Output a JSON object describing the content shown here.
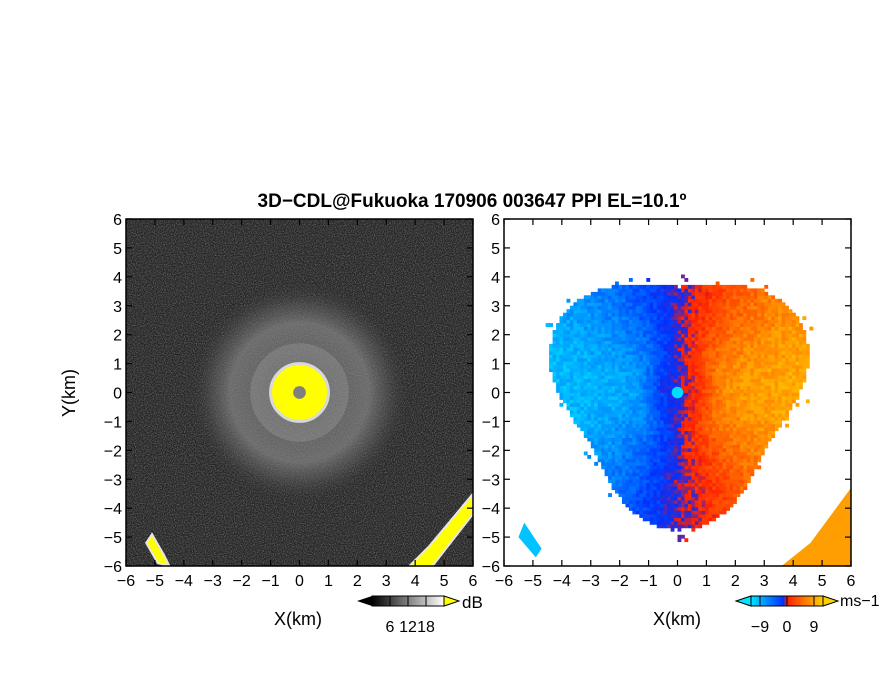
{
  "title": "3D−CDL@Fukuoka 170906 003647 PPI EL=10.1º",
  "chart_data": [
    {
      "type": "heatmap",
      "panel": "reflectivity",
      "xlabel": "X(km)",
      "ylabel": "Y(km)",
      "xlim": [
        -6,
        6
      ],
      "ylim": [
        -6,
        6
      ],
      "xticks": [
        "−6",
        "−5",
        "−4",
        "−3",
        "−2",
        "−1",
        "0",
        "1",
        "2",
        "3",
        "4",
        "5",
        "6"
      ],
      "yticks": [
        "6",
        "5",
        "4",
        "3",
        "2",
        "1",
        "0",
        "−1",
        "−2",
        "−3",
        "−4",
        "−5",
        "−6"
      ],
      "colorbar": {
        "unit": "dB",
        "ticks": [
          "6",
          "12",
          "18"
        ],
        "tick_values": [
          6,
          12,
          18
        ],
        "range": [
          0,
          24
        ],
        "colors": [
          "#000000",
          "#ffffff"
        ],
        "over_color": "#ffff00"
      },
      "features": {
        "background_level_db": 4,
        "ring_level_db": 11,
        "ring_center_km": [
          0,
          0
        ],
        "ring_radius_km": 3.1,
        "saturated_core_radius_km": 1.0,
        "saturated_color": "#ffff00",
        "center_value_color": "#7f7f7f"
      }
    },
    {
      "type": "heatmap",
      "panel": "doppler_velocity",
      "xlabel": "X(km)",
      "xlim": [
        -6,
        6
      ],
      "ylim": [
        -6,
        6
      ],
      "xticks": [
        "−6",
        "−5",
        "−4",
        "−3",
        "−2",
        "−1",
        "0",
        "1",
        "2",
        "3",
        "4",
        "5",
        "6"
      ],
      "yticks": [
        "6",
        "5",
        "4",
        "3",
        "2",
        "1",
        "0",
        "−1",
        "−2",
        "−3",
        "−4",
        "−5",
        "−6"
      ],
      "colorbar": {
        "unit": "ms−1",
        "ticks": [
          "−9",
          "0",
          "9"
        ],
        "tick_values": [
          -9,
          0,
          9
        ],
        "range": [
          -12,
          12
        ],
        "colors": [
          "#00e5ff",
          "#0030ff",
          "#ff2000",
          "#ffd000"
        ]
      },
      "features": {
        "echo_radius_km": 4.2,
        "negative_side": "west",
        "positive_side": "east",
        "center_color": "#00ddff"
      }
    }
  ]
}
